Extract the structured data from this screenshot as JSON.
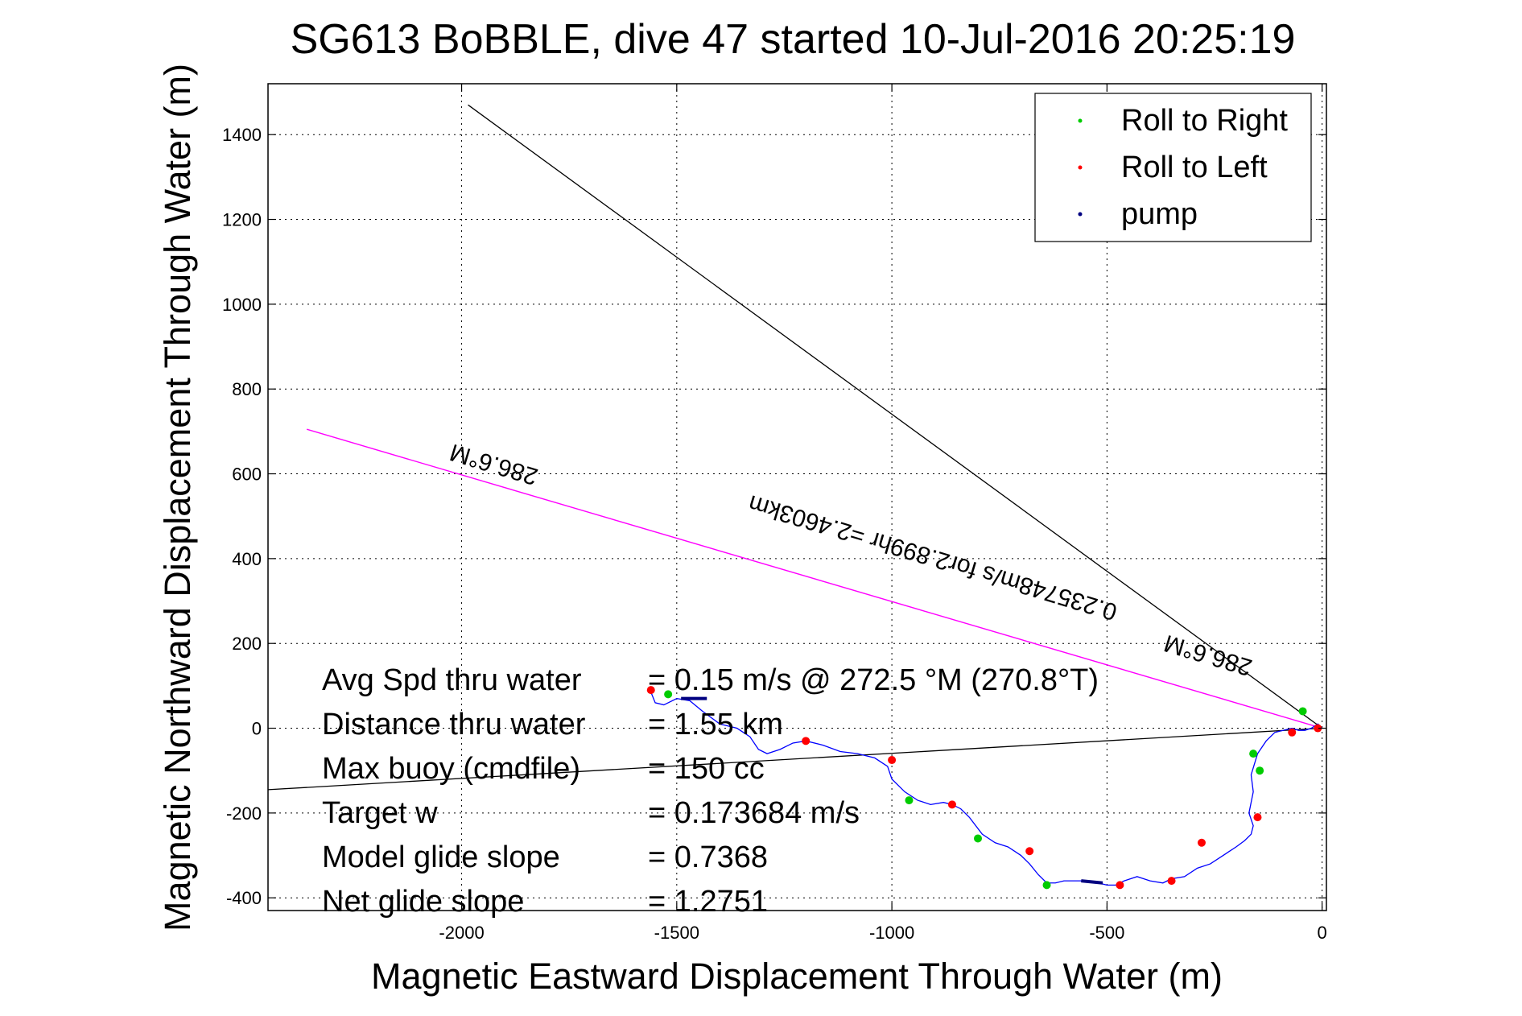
{
  "chart_data": {
    "type": "line",
    "title": "SG613 BoBBLE, dive 47 started 10-Jul-2016 20:25:19",
    "xlabel": "Magnetic Eastward Displacement Through Water (m)",
    "ylabel": "Magnetic Northward Displacement Through Water (m)",
    "xlim": [
      -2450,
      10
    ],
    "ylim": [
      -430,
      1520
    ],
    "xticks": [
      -2000,
      -1500,
      -1000,
      -500,
      0
    ],
    "yticks": [
      -400,
      -200,
      0,
      200,
      400,
      600,
      800,
      1000,
      1200,
      1400
    ],
    "grid": true,
    "legend_position": "top-right",
    "legend": [
      {
        "label": "Roll to Right",
        "color": "#00cc00"
      },
      {
        "label": "Roll to Left",
        "color": "#ff0000"
      },
      {
        "label": "pump",
        "color": "#000080"
      }
    ],
    "colors": {
      "track": "#0000ff",
      "bearing_line": "#ff00ff",
      "reference_line": "#000000"
    },
    "track": {
      "x": [
        0,
        -10,
        -25,
        -40,
        -55,
        -70,
        -90,
        -110,
        -130,
        -150,
        -165,
        -160,
        -170,
        -160,
        -165,
        -180,
        -200,
        -230,
        -260,
        -290,
        -320,
        -350,
        -370,
        -400,
        -430,
        -460,
        -480,
        -500,
        -520,
        -540,
        -560,
        -580,
        -600,
        -620,
        -640,
        -660,
        -680,
        -700,
        -730,
        -760,
        -790,
        -820,
        -840,
        -860,
        -880,
        -910,
        -940,
        -970,
        -1000,
        -1010,
        -1040,
        -1080,
        -1120,
        -1160,
        -1200,
        -1230,
        -1260,
        -1290,
        -1310,
        -1330,
        -1360,
        -1400,
        -1440,
        -1470,
        -1500,
        -1530,
        -1550,
        -1560
      ],
      "y": [
        0,
        10,
        0,
        -5,
        -5,
        0,
        -5,
        -10,
        -30,
        -60,
        -110,
        -150,
        -200,
        -230,
        -250,
        -265,
        -280,
        -300,
        -320,
        -330,
        -350,
        -355,
        -365,
        -360,
        -350,
        -360,
        -370,
        -370,
        -365,
        -360,
        -360,
        -360,
        -360,
        -365,
        -365,
        -345,
        -320,
        -300,
        -280,
        -270,
        -250,
        -210,
        -190,
        -180,
        -175,
        -180,
        -170,
        -150,
        -120,
        -90,
        -70,
        -60,
        -55,
        -40,
        -30,
        -35,
        -50,
        -60,
        -50,
        -20,
        0,
        10,
        40,
        65,
        70,
        55,
        60,
        85
      ]
    },
    "pump_segments": [
      {
        "x": [
          -560,
          -510
        ],
        "y": [
          -360,
          -365
        ]
      },
      {
        "x": [
          -1490,
          -1430
        ],
        "y": [
          70,
          70
        ]
      }
    ],
    "roll_right": {
      "x": [
        -45,
        -160,
        -145,
        -960,
        -800,
        -640,
        -1520
      ],
      "y": [
        40,
        -60,
        -100,
        -170,
        -260,
        -370,
        80
      ]
    },
    "roll_left": {
      "x": [
        -10,
        -70,
        -150,
        -280,
        -350,
        -470,
        -680,
        -860,
        -1000,
        -1200,
        -1560
      ],
      "y": [
        0,
        -10,
        -210,
        -270,
        -360,
        -370,
        -290,
        -180,
        -75,
        -30,
        90
      ]
    },
    "bearing_line": {
      "x": [
        0,
        -2360
      ],
      "y": [
        0,
        705
      ]
    },
    "reference_lines": [
      {
        "x": [
          0,
          -1985
        ],
        "y": [
          0,
          1470
        ]
      },
      {
        "x": [
          0,
          -2450
        ],
        "y": [
          0,
          -145
        ]
      }
    ],
    "annotations": [
      {
        "text": "286.6°M",
        "x": -1920,
        "y": 640,
        "rotate": 196.7
      },
      {
        "text": "286.6°M",
        "x": -260,
        "y": 190,
        "rotate": 196.7
      },
      {
        "text": "0.235748m/s for2.899hr =2.4603km",
        "x": -900,
        "y": 420,
        "rotate": 196.7
      }
    ],
    "stats": [
      {
        "label": "Avg Spd thru water",
        "value": "= 0.15 m/s @ 272.5 °M (270.8°T)"
      },
      {
        "label": "Distance thru water",
        "value": "= 1.55 km"
      },
      {
        "label": "Max buoy (cmdfile)",
        "value": "= 150 cc"
      },
      {
        "label": "Target w",
        "value": "= 0.173684 m/s"
      },
      {
        "label": "Model glide slope",
        "value": "= 0.7368"
      },
      {
        "label": "Net glide slope",
        "value": "= 1.2751"
      }
    ]
  }
}
